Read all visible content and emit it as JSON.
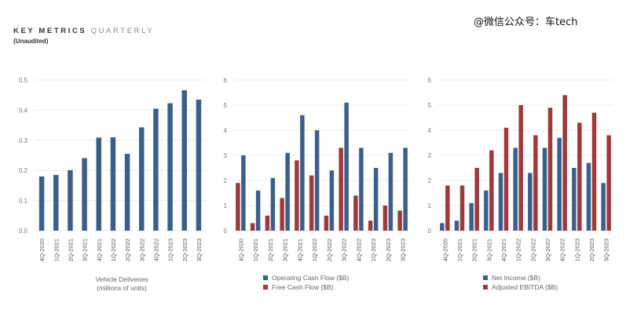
{
  "header": {
    "title_bold": "KEY METRICS",
    "title_light": "QUARTERLY",
    "subtitle": "(Unaudited)"
  },
  "watermark": "@微信公众号：车tech",
  "colors": {
    "blue": "#3b5f8c",
    "red": "#9e3a3a",
    "grid": "#ececec"
  },
  "chart_data": [
    {
      "type": "bar",
      "categories": [
        "4Q-2020",
        "1Q-2021",
        "2Q-2021",
        "3Q-2021",
        "4Q-2021",
        "1Q-2022",
        "2Q-2022",
        "3Q-2022",
        "4Q-2022",
        "1Q-2023",
        "2Q-2023",
        "3Q-2023"
      ],
      "yticks": [
        "0.0",
        "0.1",
        "0.2",
        "0.3",
        "0.4",
        "0.5"
      ],
      "ylim": [
        0,
        0.5
      ],
      "series": [
        {
          "name": "",
          "color": "#3b5f8c",
          "values": [
            0.18,
            0.185,
            0.201,
            0.241,
            0.309,
            0.31,
            0.255,
            0.343,
            0.405,
            0.423,
            0.466,
            0.435
          ]
        }
      ],
      "xlabel": "Vehicle Deliveries",
      "xlabel2": "(millions of units)"
    },
    {
      "type": "bar",
      "categories": [
        "4Q-2020",
        "1Q-2021",
        "2Q-2021",
        "3Q-2021",
        "4Q-2021",
        "1Q-2022",
        "2Q-2022",
        "3Q-2022",
        "4Q-2022",
        "1Q-2023",
        "2Q-2023",
        "3Q-2023"
      ],
      "yticks": [
        "0",
        "1",
        "2",
        "3",
        "4",
        "5",
        "6"
      ],
      "ylim": [
        0,
        6
      ],
      "series": [
        {
          "name": "Free Cash Flow ($B)",
          "color": "#9e3a3a",
          "values": [
            1.9,
            0.3,
            0.6,
            1.3,
            2.8,
            2.2,
            0.6,
            3.3,
            1.4,
            0.4,
            1.0,
            0.8
          ]
        },
        {
          "name": "Operating Cash Flow ($B)",
          "color": "#3b5f8c",
          "values": [
            3.0,
            1.6,
            2.1,
            3.1,
            4.6,
            4.0,
            2.4,
            5.1,
            3.3,
            2.5,
            3.1,
            3.3
          ]
        }
      ],
      "legend": [
        "Operating Cash Flow ($B)",
        "Free Cash Flow ($B)"
      ]
    },
    {
      "type": "bar",
      "categories": [
        "4Q-2020",
        "1Q-2021",
        "2Q-2021",
        "3Q-2021",
        "4Q-2021",
        "1Q-2022",
        "2Q-2022",
        "3Q-2022",
        "4Q-2022",
        "1Q-2023",
        "2Q-2023",
        "3Q-2023"
      ],
      "yticks": [
        "0",
        "1",
        "2",
        "3",
        "4",
        "5",
        "6"
      ],
      "ylim": [
        0,
        6
      ],
      "series": [
        {
          "name": "Net Income ($B)",
          "color": "#3b5f8c",
          "values": [
            0.3,
            0.4,
            1.1,
            1.6,
            2.3,
            3.3,
            2.3,
            3.3,
            3.7,
            2.5,
            2.7,
            1.9
          ]
        },
        {
          "name": "Adjusted EBITDA ($B)",
          "color": "#9e3a3a",
          "values": [
            1.8,
            1.8,
            2.5,
            3.2,
            4.1,
            5.0,
            3.8,
            4.9,
            5.4,
            4.3,
            4.7,
            3.8
          ]
        }
      ],
      "legend": [
        "Net Income ($B)",
        "Adjusted EBITDA ($B)"
      ]
    }
  ]
}
